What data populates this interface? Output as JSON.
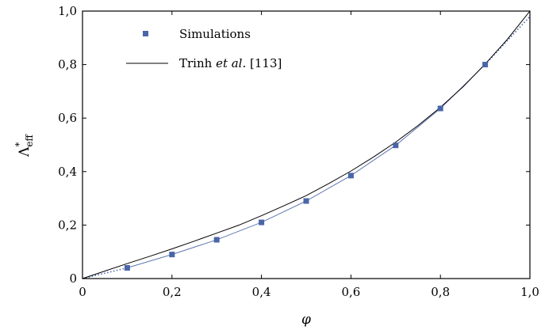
{
  "chart_data": {
    "type": "line",
    "xlabel": "φ",
    "ylabel": {
      "main": "Λ",
      "sup": "*",
      "sub": "eff"
    },
    "xlim": [
      0,
      1
    ],
    "ylim": [
      0,
      1
    ],
    "x_ticks": [
      0,
      0.2,
      0.4,
      0.6,
      0.8,
      1.0
    ],
    "x_tick_labels": [
      "0",
      "0,2",
      "0,4",
      "0,6",
      "0,8",
      "1,0"
    ],
    "y_ticks": [
      0,
      0.2,
      0.4,
      0.6,
      0.8,
      1.0
    ],
    "y_tick_labels": [
      "0",
      "0,2",
      "0,4",
      "0,6",
      "0,8",
      "1,0"
    ],
    "grid": false,
    "legend_position": "top-left",
    "series": [
      {
        "name": "Simulations",
        "style": "markers-with-thin-line",
        "color": "#4a66a8",
        "x": [
          0.1,
          0.2,
          0.3,
          0.4,
          0.5,
          0.6,
          0.7,
          0.8,
          0.9
        ],
        "y": [
          0.04,
          0.09,
          0.145,
          0.21,
          0.29,
          0.385,
          0.498,
          0.636,
          0.8
        ],
        "dotted_extension": {
          "x": [
            0,
            0.02,
            0.04,
            0.06,
            0.08,
            0.1,
            0.9,
            0.92,
            0.94,
            0.96,
            0.98,
            1.0
          ],
          "y": [
            0,
            0.008,
            0.016,
            0.024,
            0.032,
            0.04,
            0.8,
            0.836,
            0.872,
            0.908,
            0.944,
            0.98
          ]
        }
      },
      {
        "name": "Trinh et al. [113]",
        "legend_parts": [
          "Trinh ",
          "et al.",
          " [113]"
        ],
        "style": "solid-line",
        "color": "#000000",
        "x": [
          0,
          0.05,
          0.1,
          0.15,
          0.2,
          0.25,
          0.3,
          0.35,
          0.4,
          0.45,
          0.5,
          0.55,
          0.6,
          0.65,
          0.7,
          0.75,
          0.8,
          0.85,
          0.9,
          0.95,
          1.0
        ],
        "y": [
          0,
          0.028,
          0.056,
          0.083,
          0.111,
          0.14,
          0.17,
          0.2,
          0.235,
          0.272,
          0.31,
          0.355,
          0.402,
          0.454,
          0.51,
          0.572,
          0.64,
          0.716,
          0.802,
          0.895,
          1.0
        ]
      }
    ]
  },
  "colors": {
    "simulation_blue": "#4a66a8",
    "model_line": "#000000",
    "axis": "#000000"
  }
}
